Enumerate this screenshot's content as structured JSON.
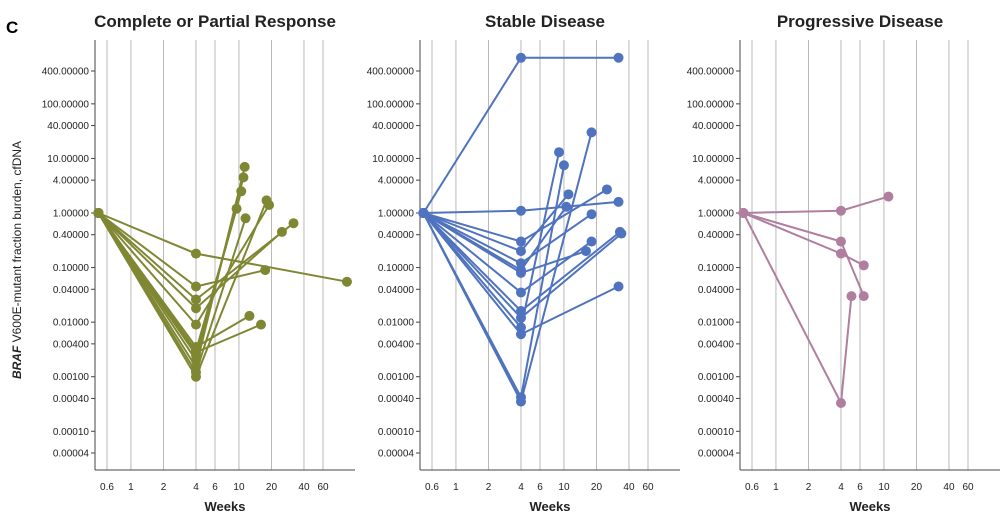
{
  "panel_label": "C",
  "y_axis_label_italic": "BRAF",
  "y_axis_label_rest": " V600E-mutant fraction burden, cfDNA",
  "chart_data": [
    {
      "type": "line",
      "title": "Complete or Partial Response",
      "xlabel": "Weeks",
      "ylabel": "BRAF V600E-mutant fraction burden, cfDNA",
      "x_scale": "log",
      "y_scale": "log",
      "xlim": [
        0.5,
        110
      ],
      "ylim": [
        3e-05,
        1000
      ],
      "x_ticks": [
        "0.6",
        "1",
        "2",
        "4",
        "6",
        "10",
        "20",
        "40",
        "60"
      ],
      "y_ticks": [
        "400.00000",
        "100.00000",
        "40.00000",
        "10.00000",
        "4.00000",
        "1.00000",
        "0.40000",
        "0.10000",
        "0.04000",
        "0.01000",
        "0.00400",
        "0.00100",
        "0.00040",
        "0.00010",
        "0.00004"
      ],
      "color": "#808733",
      "series": [
        {
          "x": [
            0.5,
            4,
            9.5
          ],
          "y": [
            1,
            0.003,
            1.2
          ]
        },
        {
          "x": [
            0.5,
            4,
            10.5
          ],
          "y": [
            1,
            0.0025,
            2.5
          ]
        },
        {
          "x": [
            0.5,
            4,
            11
          ],
          "y": [
            1,
            0.002,
            4.5
          ]
        },
        {
          "x": [
            0.5,
            4,
            11.3
          ],
          "y": [
            1,
            0.0015,
            7
          ]
        },
        {
          "x": [
            0.5,
            4,
            11.5
          ],
          "y": [
            1,
            0.0012,
            0.8
          ]
        },
        {
          "x": [
            0.5,
            4,
            18
          ],
          "y": [
            1,
            0.001,
            1.7
          ]
        },
        {
          "x": [
            0.5,
            4,
            19
          ],
          "y": [
            1,
            0.009,
            1.4
          ]
        },
        {
          "x": [
            0.5,
            4,
            25
          ],
          "y": [
            1,
            0.018,
            0.45
          ]
        },
        {
          "x": [
            0.5,
            4,
            32
          ],
          "y": [
            1,
            0.026,
            0.65
          ]
        },
        {
          "x": [
            0.5,
            4,
            17.5
          ],
          "y": [
            1,
            0.045,
            0.09
          ]
        },
        {
          "x": [
            0.5,
            4,
            100
          ],
          "y": [
            1,
            0.18,
            0.055
          ]
        },
        {
          "x": [
            0.5,
            4,
            12.5
          ],
          "y": [
            1,
            0.0035,
            0.013
          ]
        },
        {
          "x": [
            0.5,
            4,
            16
          ],
          "y": [
            1,
            0.0028,
            0.009
          ]
        }
      ]
    },
    {
      "type": "line",
      "title": "Stable Disease",
      "xlabel": "Weeks",
      "ylabel": "",
      "x_scale": "log",
      "y_scale": "log",
      "xlim": [
        0.5,
        110
      ],
      "ylim": [
        3e-05,
        1000
      ],
      "x_ticks": [
        "0.6",
        "1",
        "2",
        "4",
        "6",
        "10",
        "20",
        "40",
        "60"
      ],
      "y_ticks": [
        "400.00000",
        "100.00000",
        "40.00000",
        "10.00000",
        "4.00000",
        "1.00000",
        "0.40000",
        "0.10000",
        "0.04000",
        "0.01000",
        "0.00400",
        "0.00100",
        "0.00040",
        "0.00010",
        "0.00004"
      ],
      "color": "#4f73be",
      "series": [
        {
          "x": [
            0.5,
            4,
            32
          ],
          "y": [
            1,
            700,
            700
          ]
        },
        {
          "x": [
            0.5,
            4,
            32
          ],
          "y": [
            1,
            1.1,
            1.6
          ]
        },
        {
          "x": [
            0.5,
            4,
            25
          ],
          "y": [
            1,
            0.3,
            2.7
          ]
        },
        {
          "x": [
            0.5,
            4,
            11
          ],
          "y": [
            1,
            0.2,
            2.2
          ]
        },
        {
          "x": [
            0.5,
            4,
            18
          ],
          "y": [
            1,
            0.12,
            0.95
          ]
        },
        {
          "x": [
            0.5,
            4,
            10.5
          ],
          "y": [
            1,
            0.09,
            1.3
          ]
        },
        {
          "x": [
            0.5,
            4,
            16
          ],
          "y": [
            1,
            0.08,
            0.2
          ]
        },
        {
          "x": [
            0.5,
            4,
            18
          ],
          "y": [
            1,
            0.035,
            0.3
          ]
        },
        {
          "x": [
            0.5,
            4,
            33
          ],
          "y": [
            1,
            0.016,
            0.45
          ]
        },
        {
          "x": [
            0.5,
            4,
            34
          ],
          "y": [
            1,
            0.012,
            0.42
          ]
        },
        {
          "x": [
            0.5,
            4,
            9
          ],
          "y": [
            1,
            0.008,
            13
          ]
        },
        {
          "x": [
            0.5,
            4,
            32
          ],
          "y": [
            1,
            0.006,
            0.045
          ]
        },
        {
          "x": [
            0.5,
            4,
            10
          ],
          "y": [
            1,
            0.00042,
            7.5
          ]
        },
        {
          "x": [
            0.5,
            4,
            18
          ],
          "y": [
            1,
            0.00035,
            30
          ]
        }
      ]
    },
    {
      "type": "line",
      "title": "Progressive Disease",
      "xlabel": "Weeks",
      "ylabel": "",
      "x_scale": "log",
      "y_scale": "log",
      "xlim": [
        0.5,
        110
      ],
      "ylim": [
        3e-05,
        1000
      ],
      "x_ticks": [
        "0.6",
        "1",
        "2",
        "4",
        "6",
        "10",
        "20",
        "40",
        "60"
      ],
      "y_ticks": [
        "400.00000",
        "100.00000",
        "40.00000",
        "10.00000",
        "4.00000",
        "1.00000",
        "0.40000",
        "0.10000",
        "0.04000",
        "0.01000",
        "0.00400",
        "0.00100",
        "0.00040",
        "0.00010",
        "0.00004"
      ],
      "color": "#b07f9f",
      "series": [
        {
          "x": [
            0.5,
            4,
            11
          ],
          "y": [
            1,
            1.1,
            2
          ]
        },
        {
          "x": [
            0.5,
            4,
            6.5
          ],
          "y": [
            1,
            0.3,
            0.03
          ]
        },
        {
          "x": [
            0.5,
            4,
            6.5
          ],
          "y": [
            1,
            0.18,
            0.11
          ]
        },
        {
          "x": [
            0.5,
            4,
            5
          ],
          "y": [
            1,
            0.00033,
            0.03
          ]
        }
      ]
    }
  ]
}
